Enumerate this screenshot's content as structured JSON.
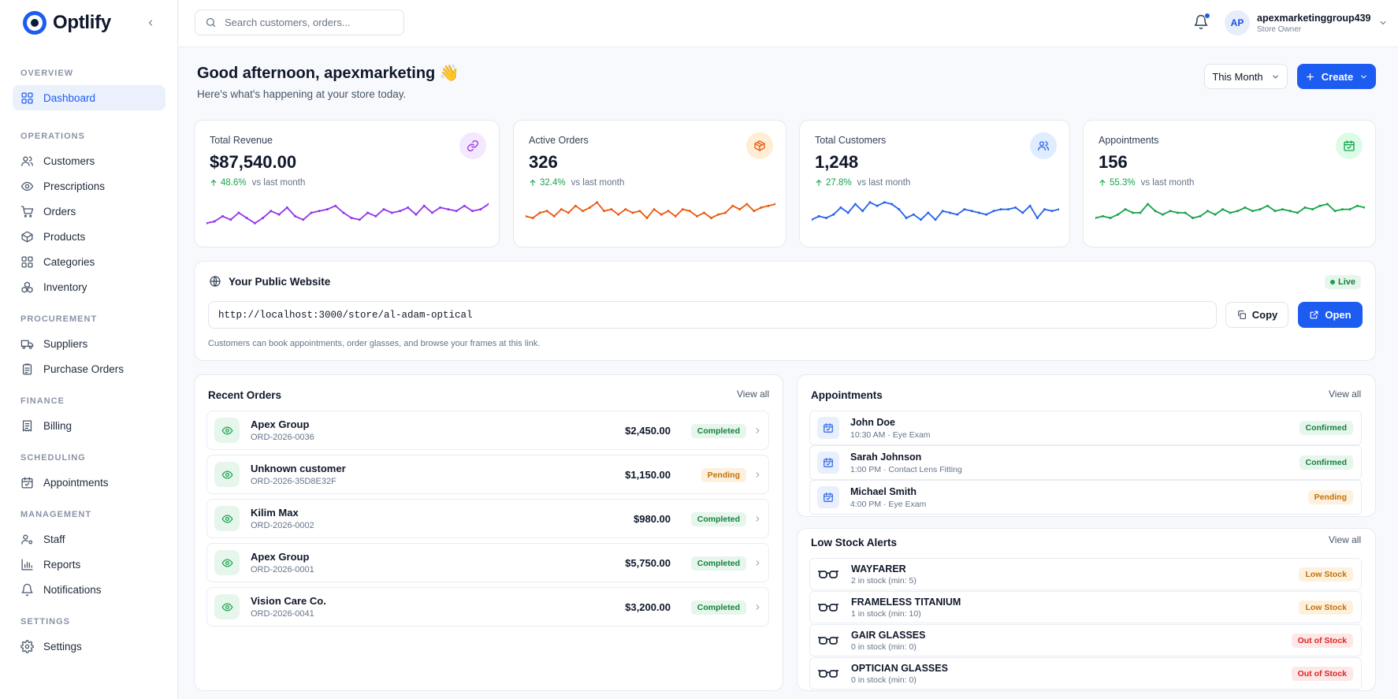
{
  "app": {
    "name": "Optlify"
  },
  "search": {
    "placeholder": "Search customers, orders..."
  },
  "user": {
    "initials": "AP",
    "name": "apexmarketinggroup439",
    "role": "Store Owner"
  },
  "sidebar": {
    "sections": [
      {
        "label": "OVERVIEW",
        "items": [
          {
            "label": "Dashboard",
            "icon": "grid-icon",
            "active": true
          }
        ]
      },
      {
        "label": "OPERATIONS",
        "items": [
          {
            "label": "Customers",
            "icon": "users-icon"
          },
          {
            "label": "Prescriptions",
            "icon": "eye-icon"
          },
          {
            "label": "Orders",
            "icon": "cart-icon"
          },
          {
            "label": "Products",
            "icon": "box-icon"
          },
          {
            "label": "Categories",
            "icon": "grid-icon"
          },
          {
            "label": "Inventory",
            "icon": "boxes-icon"
          }
        ]
      },
      {
        "label": "PROCUREMENT",
        "items": [
          {
            "label": "Suppliers",
            "icon": "truck-icon"
          },
          {
            "label": "Purchase Orders",
            "icon": "clipboard-icon"
          }
        ]
      },
      {
        "label": "FINANCE",
        "items": [
          {
            "label": "Billing",
            "icon": "receipt-icon"
          }
        ]
      },
      {
        "label": "SCHEDULING",
        "items": [
          {
            "label": "Appointments",
            "icon": "calendar-icon"
          }
        ]
      },
      {
        "label": "MANAGEMENT",
        "items": [
          {
            "label": "Staff",
            "icon": "user-cog-icon"
          },
          {
            "label": "Reports",
            "icon": "bar-chart-icon"
          },
          {
            "label": "Notifications",
            "icon": "bell-icon"
          }
        ]
      },
      {
        "label": "SETTINGS",
        "items": [
          {
            "label": "Settings",
            "icon": "gear-icon"
          }
        ]
      }
    ]
  },
  "header": {
    "greeting": "Good afternoon, apexmarketing 👋",
    "subtitle": "Here's what's happening at your store today.",
    "period": "This Month",
    "create": "Create"
  },
  "stats": [
    {
      "title": "Total Revenue",
      "value": "$87,540.00",
      "change": "48.6%",
      "vs": "vs last month",
      "icon": "link-icon",
      "color": "#9333ea",
      "bg": "#f3e8ff",
      "series": [
        0.2,
        0.25,
        0.4,
        0.3,
        0.5,
        0.35,
        0.2,
        0.35,
        0.55,
        0.45,
        0.65,
        0.4,
        0.3,
        0.5,
        0.55,
        0.6,
        0.7,
        0.5,
        0.35,
        0.3,
        0.5,
        0.4,
        0.6,
        0.5,
        0.55,
        0.65,
        0.45,
        0.7,
        0.5,
        0.65,
        0.6,
        0.55,
        0.7,
        0.55,
        0.6,
        0.75
      ]
    },
    {
      "title": "Active Orders",
      "value": "326",
      "change": "32.4%",
      "vs": "vs last month",
      "icon": "package-icon",
      "color": "#ea580c",
      "bg": "#ffedd5",
      "series": [
        0.4,
        0.35,
        0.5,
        0.55,
        0.4,
        0.6,
        0.5,
        0.7,
        0.55,
        0.65,
        0.8,
        0.55,
        0.6,
        0.45,
        0.6,
        0.5,
        0.55,
        0.35,
        0.6,
        0.45,
        0.55,
        0.4,
        0.6,
        0.55,
        0.4,
        0.5,
        0.35,
        0.45,
        0.5,
        0.7,
        0.6,
        0.75,
        0.55,
        0.65,
        0.7,
        0.75
      ]
    },
    {
      "title": "Total Customers",
      "value": "1,248",
      "change": "27.8%",
      "vs": "vs last month",
      "icon": "users-icon",
      "color": "#2563eb",
      "bg": "#e0ecff",
      "series": [
        0.3,
        0.4,
        0.35,
        0.45,
        0.65,
        0.5,
        0.75,
        0.55,
        0.8,
        0.7,
        0.8,
        0.75,
        0.6,
        0.35,
        0.45,
        0.3,
        0.5,
        0.3,
        0.55,
        0.5,
        0.45,
        0.6,
        0.55,
        0.5,
        0.45,
        0.55,
        0.6,
        0.6,
        0.65,
        0.5,
        0.7,
        0.35,
        0.6,
        0.55,
        0.6
      ]
    },
    {
      "title": "Appointments",
      "value": "156",
      "change": "55.3%",
      "vs": "vs last month",
      "icon": "calendar-icon",
      "color": "#16a34a",
      "bg": "#dcfce7",
      "series": [
        0.35,
        0.4,
        0.35,
        0.45,
        0.6,
        0.5,
        0.5,
        0.75,
        0.55,
        0.45,
        0.55,
        0.5,
        0.5,
        0.35,
        0.4,
        0.55,
        0.45,
        0.6,
        0.5,
        0.55,
        0.65,
        0.55,
        0.6,
        0.7,
        0.55,
        0.6,
        0.55,
        0.5,
        0.65,
        0.6,
        0.7,
        0.75,
        0.55,
        0.6,
        0.6,
        0.7,
        0.65
      ]
    }
  ],
  "website": {
    "title": "Your Public Website",
    "status": "Live",
    "url": "http://localhost:3000/store/al-adam-optical",
    "copy": "Copy",
    "open": "Open",
    "note": "Customers can book appointments, order glasses, and browse your frames at this link."
  },
  "orders": {
    "title": "Recent Orders",
    "view_all": "View all",
    "rows": [
      {
        "name": "Apex Group",
        "id": "ORD-2026-0036",
        "amount": "$2,450.00",
        "status": "Completed",
        "tone": "green"
      },
      {
        "name": "Unknown customer",
        "id": "ORD-2026-35D8E32F",
        "amount": "$1,150.00",
        "status": "Pending",
        "tone": "amber"
      },
      {
        "name": "Kilim Max",
        "id": "ORD-2026-0002",
        "amount": "$980.00",
        "status": "Completed",
        "tone": "green"
      },
      {
        "name": "Apex Group",
        "id": "ORD-2026-0001",
        "amount": "$5,750.00",
        "status": "Completed",
        "tone": "green"
      },
      {
        "name": "Vision Care Co.",
        "id": "ORD-2026-0041",
        "amount": "$3,200.00",
        "status": "Completed",
        "tone": "green"
      }
    ]
  },
  "appointments": {
    "title": "Appointments",
    "view_all": "View all",
    "rows": [
      {
        "name": "John Doe",
        "detail": "10:30 AM · Eye Exam",
        "status": "Confirmed",
        "tone": "green"
      },
      {
        "name": "Sarah Johnson",
        "detail": "1:00 PM · Contact Lens Fitting",
        "status": "Confirmed",
        "tone": "green"
      },
      {
        "name": "Michael Smith",
        "detail": "4:00 PM · Eye Exam",
        "status": "Pending",
        "tone": "amber"
      }
    ]
  },
  "stock": {
    "title": "Low Stock Alerts",
    "view_all": "View all",
    "rows": [
      {
        "name": "WAYFARER",
        "detail": "2 in stock (min: 5)",
        "status": "Low Stock",
        "tone": "amber"
      },
      {
        "name": "FRAMELESS TITANIUM",
        "detail": "1 in stock (min: 10)",
        "status": "Low Stock",
        "tone": "amber"
      },
      {
        "name": "GAIR GLASSES",
        "detail": "0 in stock (min: 0)",
        "status": "Out of Stock",
        "tone": "red"
      },
      {
        "name": "OPTICIAN GLASSES",
        "detail": "0 in stock (min: 0)",
        "status": "Out of Stock",
        "tone": "red"
      }
    ]
  }
}
